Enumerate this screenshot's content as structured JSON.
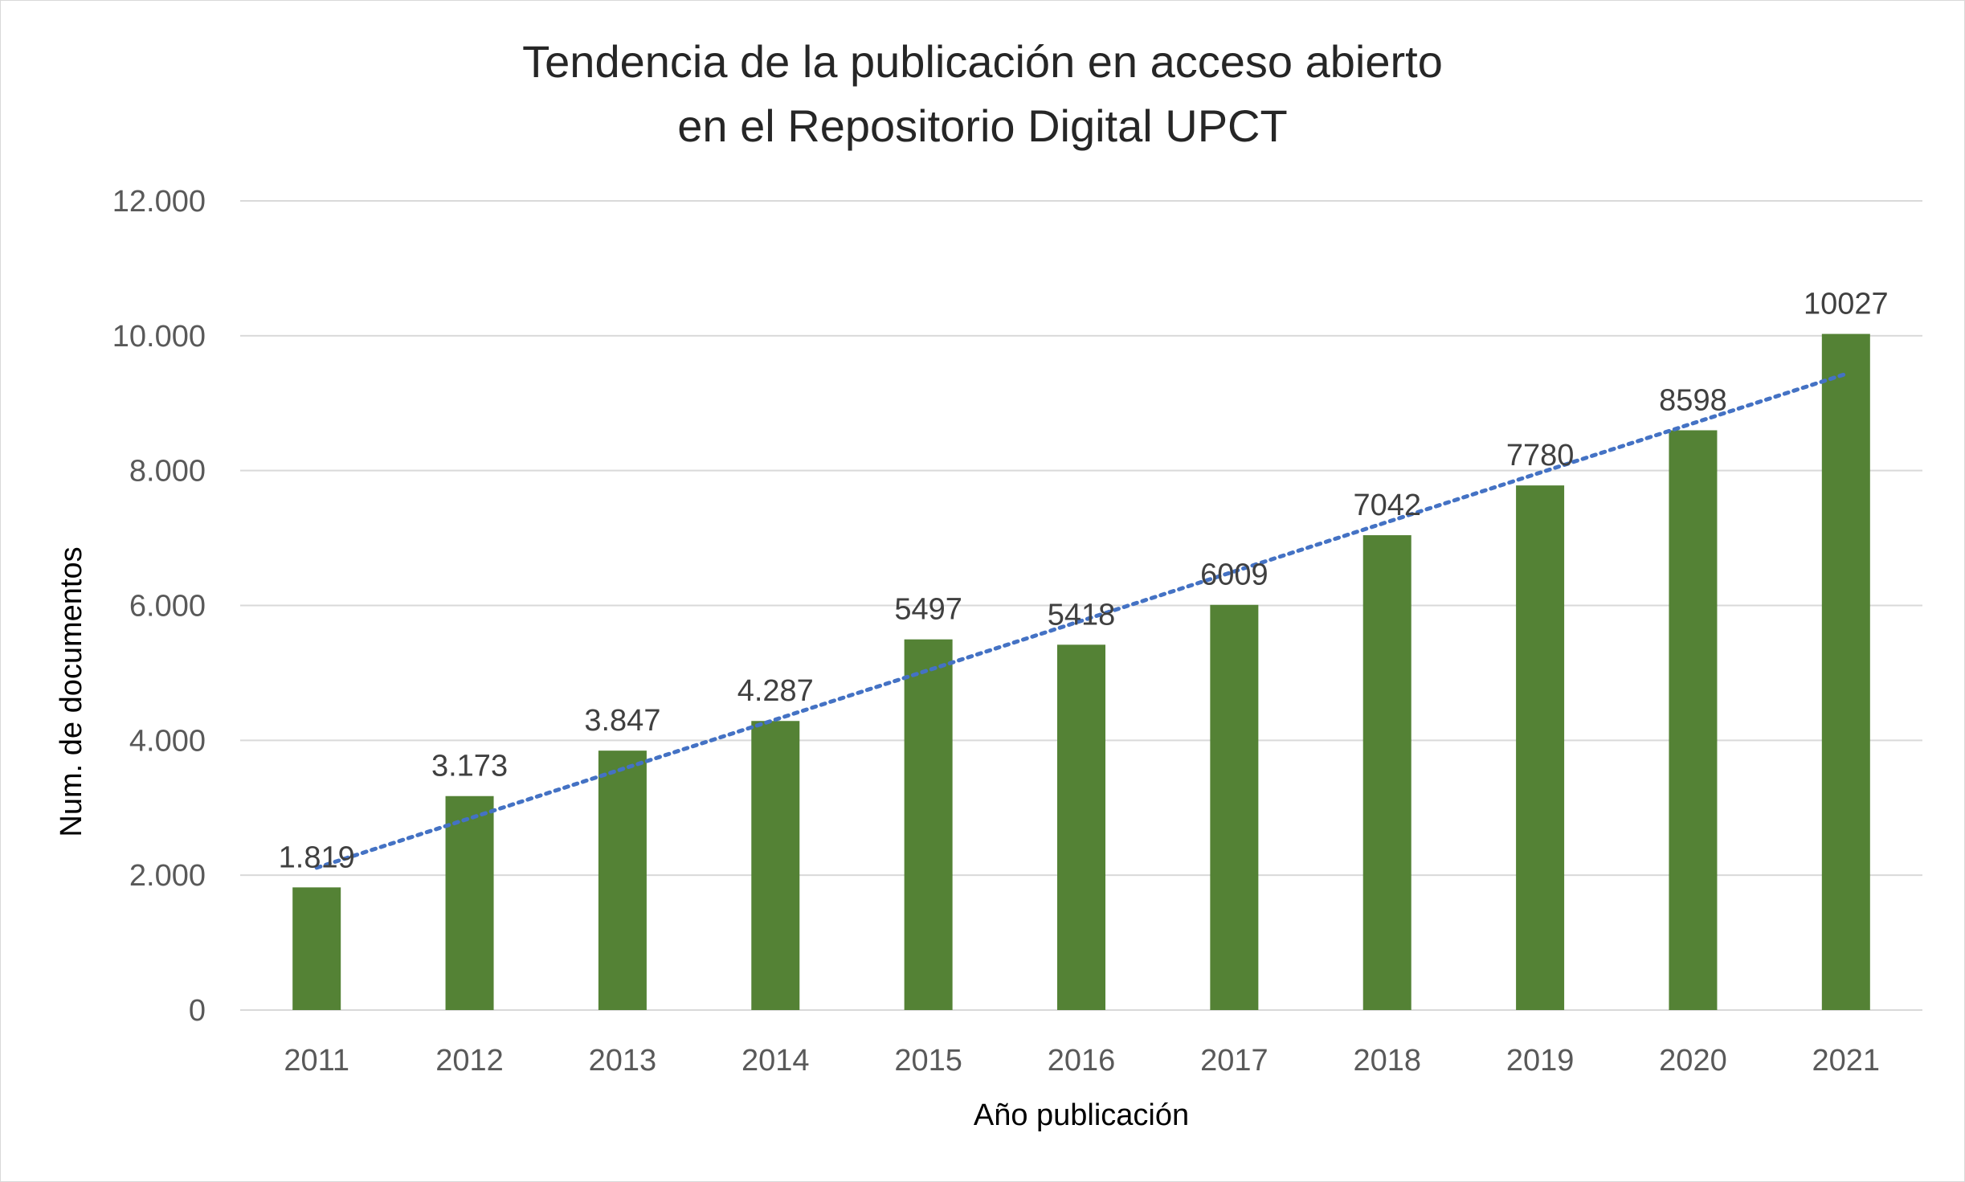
{
  "chart_data": {
    "type": "bar",
    "title_lines": [
      "Tendencia de la publicación en acceso abierto",
      "en el Repositorio Digital  UPCT"
    ],
    "xlabel": "Año publicación",
    "ylabel": "Num. de documentos",
    "categories": [
      "2011",
      "2012",
      "2013",
      "2014",
      "2015",
      "2016",
      "2017",
      "2018",
      "2019",
      "2020",
      "2021"
    ],
    "values": [
      1819,
      3173,
      3847,
      4287,
      5497,
      5418,
      6009,
      7042,
      7780,
      8598,
      10027
    ],
    "data_labels": [
      "1.819",
      "3.173",
      "3.847",
      "4.287",
      "5497",
      "5418",
      "6009",
      "7042",
      "7780",
      "8598",
      "10027"
    ],
    "ylim": [
      0,
      12000
    ],
    "yticks": [
      0,
      2000,
      4000,
      6000,
      8000,
      10000,
      12000
    ],
    "ytick_labels": [
      "0",
      "2.000",
      "4.000",
      "6.000",
      "8.000",
      "10.000",
      "12.000"
    ],
    "trendline": {
      "type": "linear",
      "style": "dotted",
      "color": "#4472c4"
    },
    "grid": true,
    "bar_color": "#548235",
    "gridline_color": "#d9d9d9"
  }
}
